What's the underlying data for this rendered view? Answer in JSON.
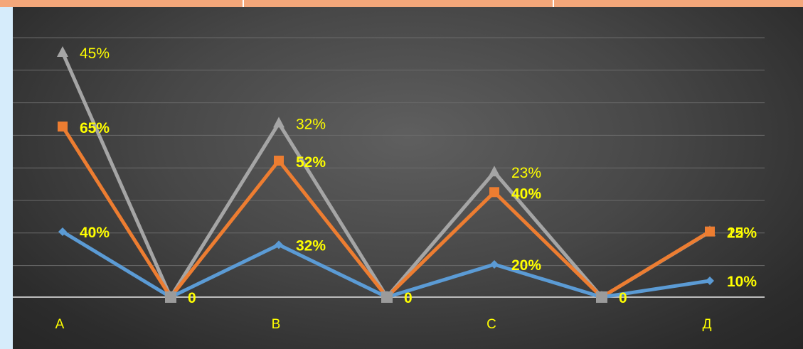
{
  "chart_data": {
    "type": "line",
    "categories": [
      "А",
      "",
      "В",
      "",
      "С",
      "",
      "Д"
    ],
    "series": [
      {
        "values": [
          45,
          0,
          32,
          0,
          23,
          0,
          12
        ],
        "labels": [
          "45%",
          "",
          "32%",
          "",
          "23%",
          "",
          "12%"
        ],
        "color": "#a5a5a5",
        "marker": "triangle"
      },
      {
        "values": [
          65,
          0,
          52,
          0,
          40,
          0,
          25
        ],
        "labels": [
          "65%",
          "",
          "52%",
          "",
          "40%",
          "",
          "25%"
        ],
        "color": "#ed7d31",
        "marker": "square"
      },
      {
        "values": [
          40,
          0,
          32,
          0,
          20,
          0,
          10
        ],
        "labels": [
          "40%",
          "0",
          "32%",
          "0",
          "20%",
          "0",
          "10%"
        ],
        "color": "#5b9bd5",
        "marker": "diamond"
      }
    ],
    "ylim": [
      0,
      45
    ],
    "grid": true,
    "legend": "none",
    "label_color": "#ffff00",
    "category_color": "#ffff00"
  }
}
